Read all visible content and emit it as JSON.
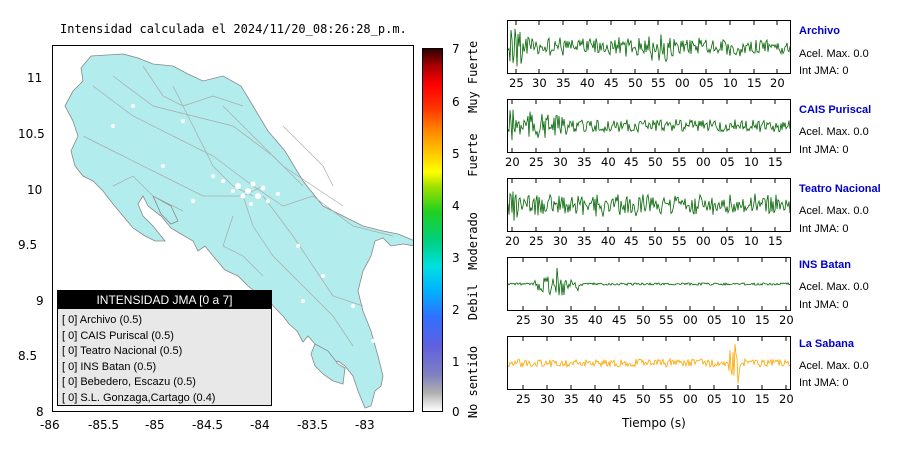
{
  "map": {
    "title": "Intensidad calculada el 2024/11/20_08:26:28_p.m.",
    "y_ticks": [
      "11",
      "10.5",
      "10",
      "9.5",
      "9",
      "8.5",
      "8"
    ],
    "x_ticks": [
      "-86",
      "-85.5",
      "-85",
      "-84.5",
      "-84",
      "-83.5",
      "-83"
    ],
    "land_color": "#b2ecec",
    "legend": {
      "header": "INTENSIDAD JMA [0 a 7]",
      "items": [
        "[ 0]  Archivo (0.5)",
        "[ 0]  CAIS Puriscal (0.5)",
        "[ 0]  Teatro Nacional (0.5)",
        "[ 0]  INS Batan (0.5)",
        "[ 0]  Bebedero, Escazu (0.5)",
        "[ 0]  S.L. Gonzaga,Cartago (0.4)"
      ]
    }
  },
  "colorbar": {
    "ticks": [
      "7",
      "6",
      "5",
      "4",
      "3",
      "2",
      "1",
      "0"
    ],
    "labels": [
      "Muy Fuerte",
      "Fuerte",
      "Moderado",
      "Debil",
      "No sentido"
    ]
  },
  "stations": [
    {
      "name": "Archivo",
      "acel": "Acel. Max. 0.0",
      "int": "Int JMA: 0",
      "color": "#006400",
      "ticks": [
        "25",
        "30",
        "35",
        "40",
        "45",
        "50",
        "55",
        "00",
        "05",
        "10",
        "15",
        "20"
      ]
    },
    {
      "name": "CAIS Puriscal",
      "acel": "Acel. Max. 0.0",
      "int": "Int JMA: 0",
      "color": "#006400",
      "ticks": [
        "20",
        "25",
        "30",
        "35",
        "40",
        "45",
        "50",
        "55",
        "00",
        "05",
        "10",
        "15"
      ]
    },
    {
      "name": "Teatro Nacional",
      "acel": "Acel. Max. 0.0",
      "int": "Int JMA: 0",
      "color": "#006400",
      "ticks": [
        "20",
        "25",
        "30",
        "35",
        "40",
        "45",
        "50",
        "55",
        "00",
        "05",
        "10",
        "15"
      ]
    },
    {
      "name": "INS Batan",
      "acel": "Acel. Max. 0.0",
      "int": "Int JMA: 0",
      "color": "#006400",
      "ticks": [
        "25",
        "30",
        "35",
        "40",
        "45",
        "50",
        "55",
        "00",
        "05",
        "10",
        "15",
        "20"
      ]
    },
    {
      "name": "La Sabana",
      "acel": "Acel. Max. 0.0",
      "int": "Int JMA: 0",
      "color": "#ffa500",
      "ticks": [
        "25",
        "30",
        "35",
        "40",
        "45",
        "50",
        "55",
        "00",
        "05",
        "10",
        "15",
        "20"
      ]
    }
  ],
  "xaxis_label": "Tiempo (s)"
}
